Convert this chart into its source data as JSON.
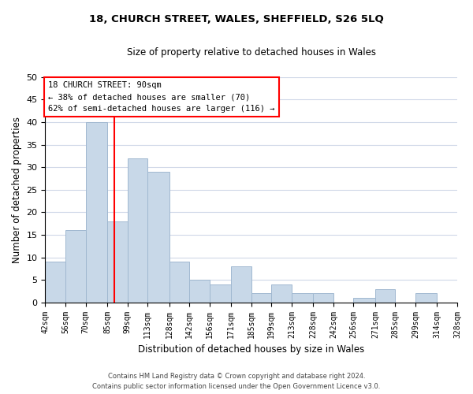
{
  "title": "18, CHURCH STREET, WALES, SHEFFIELD, S26 5LQ",
  "subtitle": "Size of property relative to detached houses in Wales",
  "xlabel": "Distribution of detached houses by size in Wales",
  "ylabel": "Number of detached properties",
  "bar_edges": [
    42,
    56,
    70,
    85,
    99,
    113,
    128,
    142,
    156,
    171,
    185,
    199,
    213,
    228,
    242,
    256,
    271,
    285,
    299,
    314,
    328
  ],
  "bar_heights": [
    9,
    16,
    40,
    18,
    32,
    29,
    9,
    5,
    4,
    8,
    2,
    4,
    2,
    2,
    0,
    1,
    3,
    0,
    2,
    0
  ],
  "bar_color": "#c8d8e8",
  "bar_edgecolor": "#a0b8d0",
  "red_line_x": 90,
  "ylim": [
    0,
    50
  ],
  "yticks": [
    0,
    5,
    10,
    15,
    20,
    25,
    30,
    35,
    40,
    45,
    50
  ],
  "tick_labels": [
    "42sqm",
    "56sqm",
    "70sqm",
    "85sqm",
    "99sqm",
    "113sqm",
    "128sqm",
    "142sqm",
    "156sqm",
    "171sqm",
    "185sqm",
    "199sqm",
    "213sqm",
    "228sqm",
    "242sqm",
    "256sqm",
    "271sqm",
    "285sqm",
    "299sqm",
    "314sqm",
    "328sqm"
  ],
  "annotation_title": "18 CHURCH STREET: 90sqm",
  "annotation_line1": "← 38% of detached houses are smaller (70)",
  "annotation_line2": "62% of semi-detached houses are larger (116) →",
  "footer_line1": "Contains HM Land Registry data © Crown copyright and database right 2024.",
  "footer_line2": "Contains public sector information licensed under the Open Government Licence v3.0.",
  "background_color": "#ffffff",
  "grid_color": "#d0d8e8"
}
